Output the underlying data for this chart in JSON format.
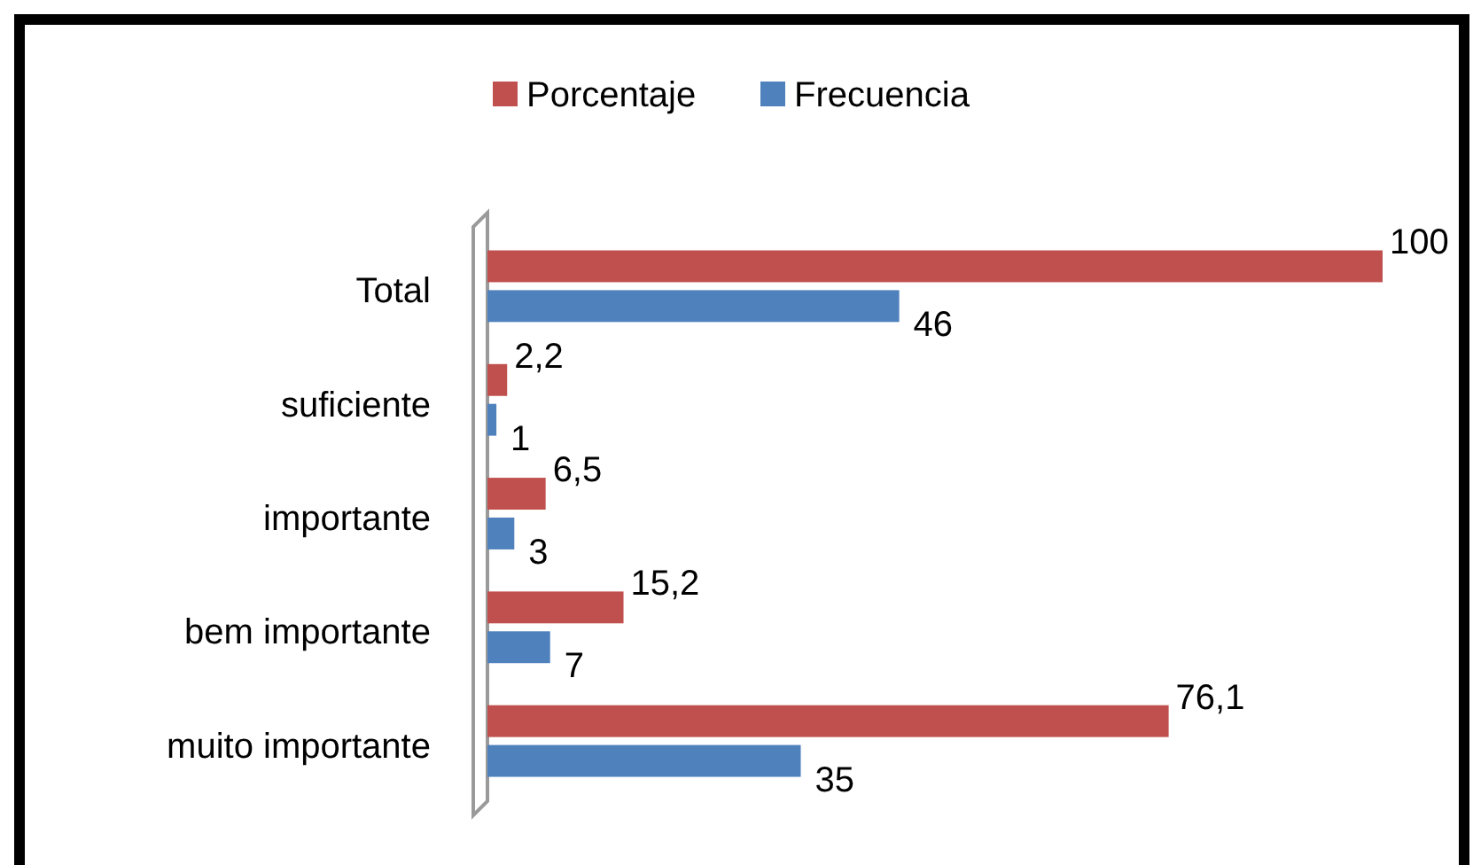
{
  "chart_data": {
    "type": "bar",
    "orientation": "horizontal",
    "categories": [
      "Total",
      "suficiente",
      "importante",
      "bem importante",
      "muito importante"
    ],
    "series": [
      {
        "name": "Porcentaje",
        "color": "#c0504d",
        "values": [
          100,
          2.2,
          6.5,
          15.2,
          76.1
        ],
        "value_labels": [
          "100",
          "2,2",
          "6,5",
          "15,2",
          "76,1"
        ]
      },
      {
        "name": "Frecuencia",
        "color": "#4f81bd",
        "values": [
          46,
          1,
          3,
          7,
          35
        ],
        "value_labels": [
          "46",
          "1",
          "3",
          "7",
          "35"
        ]
      }
    ],
    "legend": "top"
  }
}
